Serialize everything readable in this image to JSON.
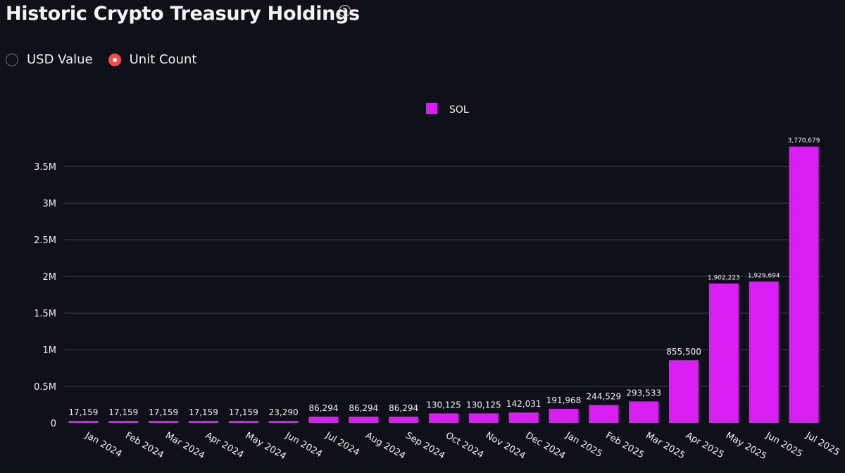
{
  "header": {
    "title": "Historic Crypto Treasury Holdings",
    "help_icon": "question-circle-icon"
  },
  "view_toggle": {
    "options": [
      {
        "label": "USD Value",
        "selected": false
      },
      {
        "label": "Unit Count",
        "selected": true
      }
    ]
  },
  "colors": {
    "background": "#0f1118",
    "bar": "#d91ef4",
    "radio_selected": "#ff4b4b",
    "grid": "#3a3c45"
  },
  "chart_data": {
    "type": "bar",
    "title": "",
    "xlabel": "",
    "ylabel": "",
    "legend": {
      "position": "top-center"
    },
    "grid": true,
    "ylim": [
      0,
      3800000
    ],
    "yticks": [
      {
        "value": 0,
        "label": "0"
      },
      {
        "value": 500000,
        "label": "0.5M"
      },
      {
        "value": 1000000,
        "label": "1M"
      },
      {
        "value": 1500000,
        "label": "1.5M"
      },
      {
        "value": 2000000,
        "label": "2M"
      },
      {
        "value": 2500000,
        "label": "2.5M"
      },
      {
        "value": 3000000,
        "label": "3M"
      },
      {
        "value": 3500000,
        "label": "3.5M"
      }
    ],
    "categories": [
      "Jan 2024",
      "Feb 2024",
      "Mar 2024",
      "Apr 2024",
      "May 2024",
      "Jun 2024",
      "Jul 2024",
      "Aug 2024",
      "Sep 2024",
      "Oct 2024",
      "Nov 2024",
      "Dec 2024",
      "Jan 2025",
      "Feb 2025",
      "Mar 2025",
      "Apr 2025",
      "May 2025",
      "Jun 2025",
      "Jul 2025"
    ],
    "series": [
      {
        "name": "SOL",
        "values": [
          17159,
          17159,
          17159,
          17159,
          17159,
          23290,
          86294,
          86294,
          86294,
          130125,
          130125,
          142031,
          191968,
          244529,
          293533,
          855500,
          1902223,
          1929694,
          3770679
        ],
        "labels": [
          "17,159",
          "17,159",
          "17,159",
          "17,159",
          "17,159",
          "23,290",
          "86,294",
          "86,294",
          "86,294",
          "130,125",
          "130,125",
          "142,031",
          "191,968",
          "244,529",
          "293,533",
          "855,500",
          "1,902,223",
          "1,929,694",
          "3,770,679"
        ]
      }
    ]
  }
}
